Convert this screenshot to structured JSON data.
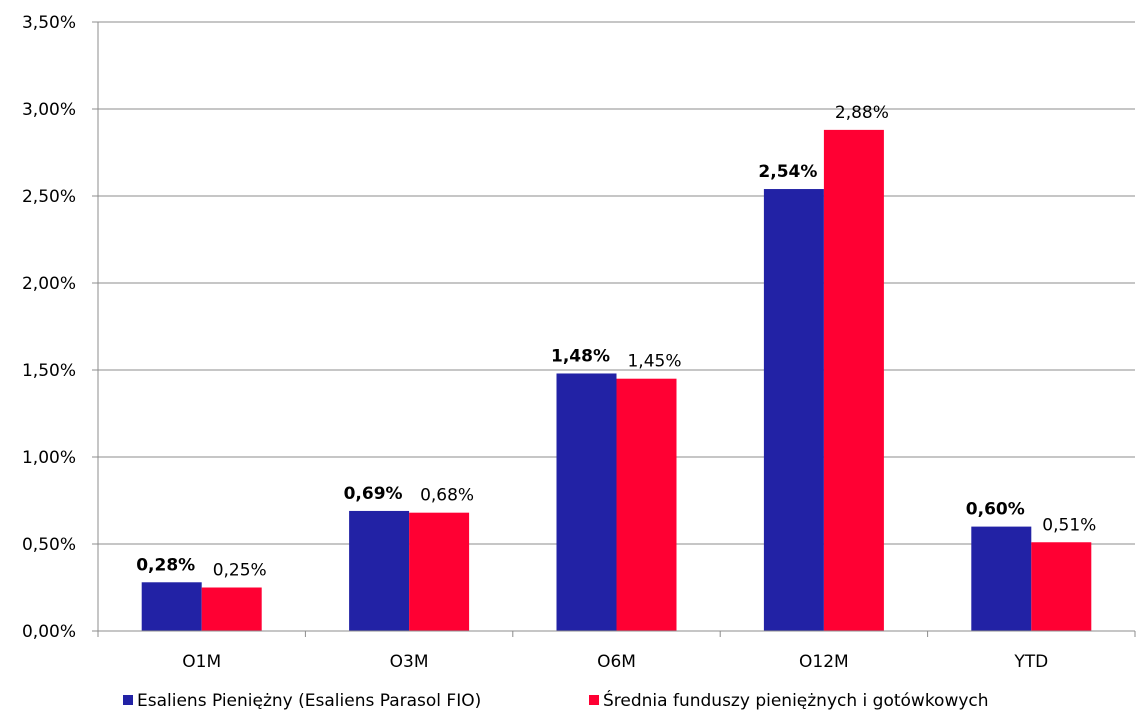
{
  "chart_data": {
    "type": "bar",
    "categories": [
      "O1M",
      "O3M",
      "O6M",
      "O12M",
      "YTD"
    ],
    "series": [
      {
        "name": "Esaliens Pieniężny (Esaliens Parasol FIO)",
        "color": "#2222a5",
        "values": [
          0.28,
          0.69,
          1.48,
          2.54,
          0.6
        ],
        "labels": [
          "0,28%",
          "0,69%",
          "1,48%",
          "2,54%",
          "0,60%"
        ],
        "label_bold": true
      },
      {
        "name": "Średnia funduszy pieniężnych i gotówkowych",
        "color": "#ff0033",
        "values": [
          0.25,
          0.68,
          1.45,
          2.88,
          0.51
        ],
        "labels": [
          "0,25%",
          "0,68%",
          "1,45%",
          "2,88%",
          "0,51%"
        ],
        "label_bold": false
      }
    ],
    "y_ticks": [
      {
        "value": 0.0,
        "label": "0,00%"
      },
      {
        "value": 0.5,
        "label": "0,50%"
      },
      {
        "value": 1.0,
        "label": "1,00%"
      },
      {
        "value": 1.5,
        "label": "1,50%"
      },
      {
        "value": 2.0,
        "label": "2,00%"
      },
      {
        "value": 2.5,
        "label": "2,50%"
      },
      {
        "value": 3.0,
        "label": "3,00%"
      },
      {
        "value": 3.5,
        "label": "3,50%"
      }
    ],
    "ylim": [
      0,
      3.5
    ],
    "grid": true,
    "legend_position": "bottom"
  }
}
